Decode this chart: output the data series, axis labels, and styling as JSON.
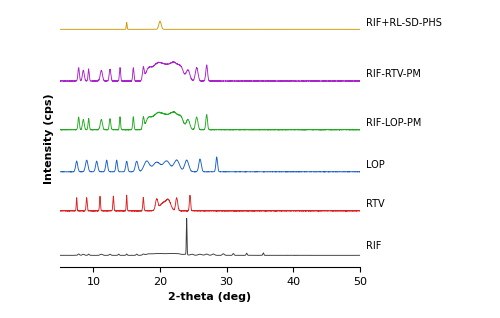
{
  "xlabel": "2-theta (deg)",
  "ylabel": "Intensity (cps)",
  "xlim": [
    5,
    50
  ],
  "xticks": [
    10,
    20,
    30,
    40,
    50
  ],
  "colors": {
    "RIF": "#3a3a3a",
    "RTV": "#dd2222",
    "LOP": "#1a5fc8",
    "RIF-LOP-PM": "#22aa22",
    "RIF-RTV-PM": "#aa22cc",
    "RIF+RL-SD-PHS": "#cc9900"
  },
  "labels": [
    "RIF",
    "RTV",
    "LOP",
    "RIF-LOP-PM",
    "RIF-RTV-PM",
    "RIF+RL-SD-PHS"
  ],
  "offsets": [
    0,
    0.38,
    0.72,
    1.08,
    1.5,
    1.95
  ],
  "scale_factors": {
    "RIF": 0.32,
    "RTV": 0.14,
    "LOP": 0.13,
    "RIF-LOP-PM": 0.16,
    "RIF-RTV-PM": 0.17,
    "RIF+RL-SD-PHS": 0.07
  },
  "figsize": [
    5.0,
    3.18
  ],
  "dpi": 100
}
